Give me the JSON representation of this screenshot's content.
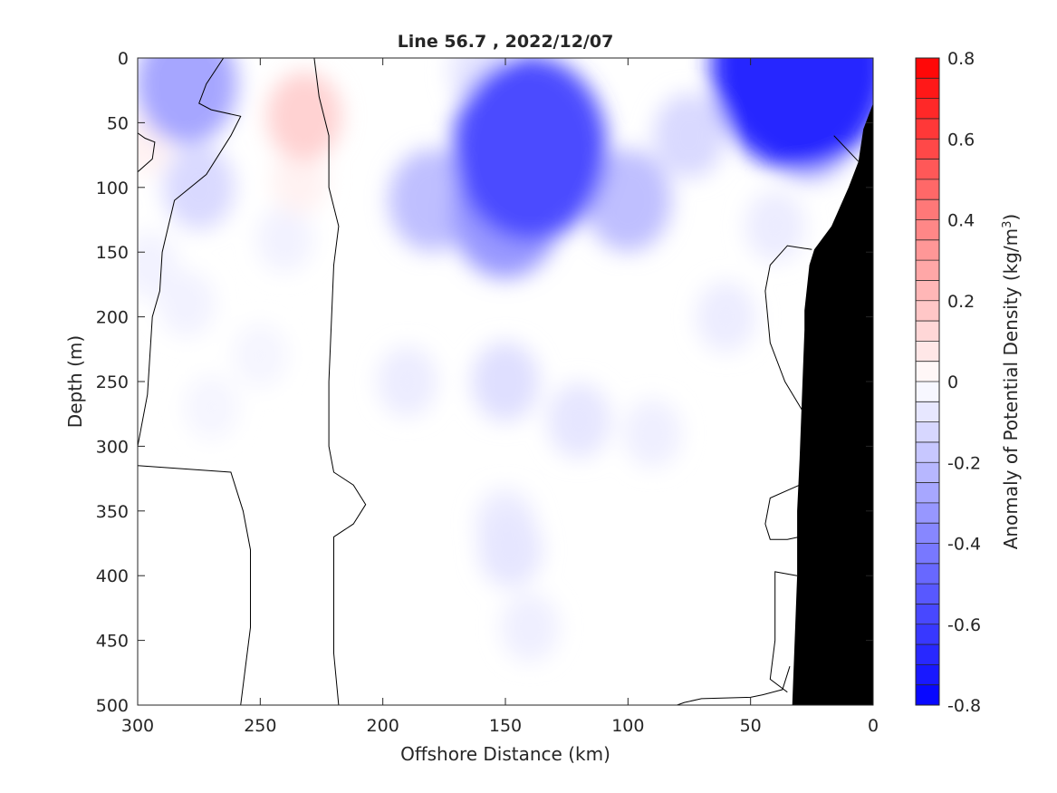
{
  "chart_data": {
    "type": "heatmap",
    "title": "Line 56.7 , 2022/12/07",
    "xlabel": "Offshore Distance (km)",
    "ylabel": "Depth (m)",
    "xlim": [
      300,
      0
    ],
    "ylim": [
      500,
      0
    ],
    "x_reversed": true,
    "y_reversed": true,
    "x_ticks": [
      300,
      250,
      200,
      150,
      100,
      50,
      0
    ],
    "y_ticks": [
      0,
      50,
      100,
      150,
      200,
      250,
      300,
      350,
      400,
      450,
      500
    ],
    "colorbar": {
      "label": "Anomaly of Potential Density (kg/m",
      "label_superscript": "3",
      "label_suffix": ")",
      "range": [
        -0.8,
        0.8
      ],
      "ticks": [
        -0.8,
        -0.6,
        -0.4,
        -0.2,
        0,
        0.2,
        0.4,
        0.6,
        0.8
      ],
      "tick_labels": [
        "-0.8",
        "-0.6",
        "-0.4",
        "-0.2",
        "0",
        "0.2",
        "0.4",
        "0.6",
        "0.8"
      ],
      "levels": 32,
      "low_color": "#0000ff",
      "mid_color": "#ffffff",
      "high_color": "#ff0000"
    },
    "zero_contour": true,
    "bathymetry_color": "#000000",
    "anomaly_patches": [
      {
        "x": 280,
        "depth": 20,
        "value": -0.28
      },
      {
        "x": 160,
        "depth": 10,
        "value": -0.08
      },
      {
        "x": 45,
        "depth": 20,
        "value": -0.18
      },
      {
        "x": 275,
        "depth": 100,
        "value": -0.12
      },
      {
        "x": 240,
        "depth": 140,
        "value": -0.04
      },
      {
        "x": 295,
        "depth": 160,
        "value": -0.04
      },
      {
        "x": 280,
        "depth": 190,
        "value": -0.04
      },
      {
        "x": 270,
        "depth": 270,
        "value": -0.03
      },
      {
        "x": 250,
        "depth": 230,
        "value": -0.03
      },
      {
        "x": 232,
        "depth": 45,
        "value": 0.14
      },
      {
        "x": 234,
        "depth": 95,
        "value": 0.04
      },
      {
        "x": 297,
        "depth": 65,
        "value": 0.04
      },
      {
        "x": 150,
        "depth": 120,
        "value": -0.32
      },
      {
        "x": 140,
        "depth": 70,
        "value": -0.56
      },
      {
        "x": 180,
        "depth": 110,
        "value": -0.2
      },
      {
        "x": 100,
        "depth": 110,
        "value": -0.2
      },
      {
        "x": 150,
        "depth": 250,
        "value": -0.1
      },
      {
        "x": 120,
        "depth": 280,
        "value": -0.08
      },
      {
        "x": 150,
        "depth": 360,
        "value": -0.06
      },
      {
        "x": 140,
        "depth": 440,
        "value": -0.05
      },
      {
        "x": 190,
        "depth": 250,
        "value": -0.06
      },
      {
        "x": 90,
        "depth": 290,
        "value": -0.05
      },
      {
        "x": 60,
        "depth": 200,
        "value": -0.06
      },
      {
        "x": 75,
        "depth": 60,
        "value": -0.12
      },
      {
        "x": 40,
        "depth": 130,
        "value": -0.06
      },
      {
        "x": 30,
        "depth": 5,
        "value": -0.68
      },
      {
        "x": 25,
        "depth": 60,
        "value": -0.16
      },
      {
        "x": 148,
        "depth": 380,
        "value": -0.08
      }
    ],
    "zero_contours": [
      [
        [
          265,
          0
        ],
        [
          272,
          20
        ],
        [
          275,
          35
        ],
        [
          270,
          40
        ],
        [
          258,
          45
        ],
        [
          262,
          60
        ],
        [
          272,
          90
        ],
        [
          285,
          110
        ],
        [
          290,
          150
        ],
        [
          291,
          180
        ],
        [
          294,
          200
        ],
        [
          296,
          260
        ],
        [
          300,
          300
        ]
      ],
      [
        [
          300,
          315
        ],
        [
          262,
          320
        ],
        [
          257,
          350
        ],
        [
          254,
          380
        ],
        [
          254,
          440
        ],
        [
          258,
          500
        ]
      ],
      [
        [
          228,
          0
        ],
        [
          226,
          30
        ],
        [
          222,
          60
        ],
        [
          222,
          100
        ],
        [
          218,
          130
        ],
        [
          220,
          160
        ],
        [
          222,
          250
        ],
        [
          222,
          300
        ],
        [
          220,
          320
        ],
        [
          212,
          330
        ],
        [
          207,
          345
        ],
        [
          212,
          360
        ],
        [
          220,
          370
        ],
        [
          220,
          460
        ],
        [
          218,
          500
        ]
      ],
      [
        [
          300,
          0
        ],
        [
          303,
          0
        ]
      ],
      [
        [
          300,
          58
        ],
        [
          297,
          62
        ],
        [
          293,
          65
        ],
        [
          294,
          78
        ],
        [
          300,
          88
        ]
      ],
      [
        [
          80,
          500
        ],
        [
          77,
          498
        ],
        [
          70,
          495
        ],
        [
          50,
          494
        ],
        [
          45,
          492
        ],
        [
          37,
          488
        ],
        [
          34,
          470
        ]
      ],
      [
        [
          31,
          400
        ],
        [
          40,
          397
        ],
        [
          40,
          420
        ],
        [
          40,
          450
        ],
        [
          42,
          480
        ],
        [
          35,
          490
        ]
      ],
      [
        [
          30,
          330
        ],
        [
          42,
          340
        ],
        [
          44,
          360
        ],
        [
          42,
          372
        ],
        [
          35,
          372
        ],
        [
          30,
          370
        ]
      ],
      [
        [
          25,
          148
        ],
        [
          35,
          145
        ],
        [
          42,
          160
        ],
        [
          44,
          180
        ],
        [
          42,
          220
        ],
        [
          36,
          250
        ],
        [
          29,
          272
        ]
      ],
      [
        [
          16,
          60
        ],
        [
          6,
          80
        ]
      ]
    ],
    "bathymetry_profile": [
      [
        0,
        35
      ],
      [
        4,
        55
      ],
      [
        6,
        80
      ],
      [
        10,
        100
      ],
      [
        17,
        130
      ],
      [
        24,
        148
      ],
      [
        26,
        160
      ],
      [
        28,
        195
      ],
      [
        28,
        210
      ],
      [
        29,
        260
      ],
      [
        30,
        310
      ],
      [
        31,
        350
      ],
      [
        31,
        400
      ],
      [
        32,
        450
      ],
      [
        33,
        500
      ],
      [
        0,
        500
      ]
    ]
  }
}
